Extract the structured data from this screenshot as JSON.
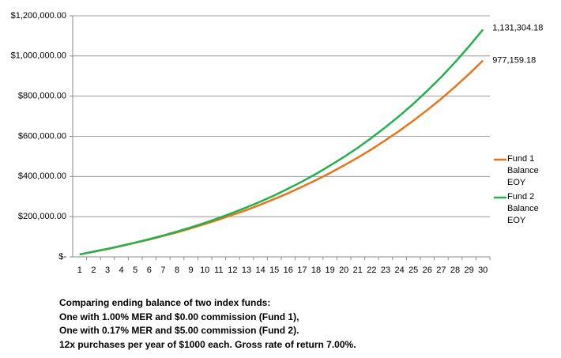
{
  "chart_data": {
    "type": "line",
    "categories": [
      "1",
      "2",
      "3",
      "4",
      "5",
      "6",
      "7",
      "8",
      "9",
      "10",
      "11",
      "12",
      "13",
      "14",
      "15",
      "16",
      "17",
      "18",
      "19",
      "20",
      "21",
      "22",
      "23",
      "24",
      "25",
      "26",
      "27",
      "28",
      "29",
      "30"
    ],
    "series": [
      {
        "name": "Fund 1 Balance EOY",
        "color": "#e8751a",
        "values": [
          12000,
          25000,
          39000,
          54000,
          70000,
          86000,
          104000,
          122000,
          142000,
          163000,
          185000,
          209000,
          233000,
          260000,
          288000,
          317000,
          349000,
          382000,
          417000,
          455000,
          494000,
          536000,
          581000,
          628000,
          678000,
          731000,
          787000,
          847000,
          910000,
          977159.18
        ],
        "value_labels": [
          null,
          null,
          null,
          null,
          null,
          null,
          null,
          null,
          null,
          null,
          null,
          null,
          null,
          null,
          null,
          null,
          null,
          null,
          null,
          null,
          null,
          null,
          null,
          null,
          null,
          null,
          null,
          null,
          null,
          "977,159.18"
        ]
      },
      {
        "name": "Fund 2 Balance EOY",
        "color": "#22b14c",
        "values": [
          12000,
          26000,
          40000,
          55000,
          71000,
          88000,
          106000,
          126000,
          147000,
          169000,
          193000,
          219000,
          246000,
          275000,
          306000,
          340000,
          375000,
          413000,
          454000,
          497000,
          543000,
          593000,
          646000,
          702000,
          762000,
          827000,
          895000,
          969000,
          1048000,
          1131304.18
        ],
        "value_labels": [
          null,
          null,
          null,
          null,
          null,
          null,
          null,
          null,
          null,
          null,
          null,
          null,
          null,
          null,
          null,
          null,
          null,
          null,
          null,
          null,
          null,
          null,
          null,
          null,
          null,
          null,
          null,
          null,
          null,
          "1,131,304.18"
        ]
      }
    ],
    "ylim": [
      0,
      1200000
    ],
    "yticks": [
      {
        "value": 0,
        "label": "$-"
      },
      {
        "value": 200000,
        "label": "$200,000.00"
      },
      {
        "value": 400000,
        "label": "$400,000.00"
      },
      {
        "value": 600000,
        "label": "$600,000.00"
      },
      {
        "value": 800000,
        "label": "$800,000.00"
      },
      {
        "value": 1000000,
        "label": "$1,000,000.00"
      },
      {
        "value": 1200000,
        "label": "$1,200,000.00"
      }
    ],
    "grid": true,
    "legend": "right",
    "caption": [
      "Comparing ending balance of two index funds:",
      "One with 1.00% MER and $0.00 commission (Fund 1),",
      "One with 0.17% MER and $5.00 commission (Fund 2).",
      "12x purchases per year of $1000 each.  Gross rate of return 7.00%."
    ]
  }
}
